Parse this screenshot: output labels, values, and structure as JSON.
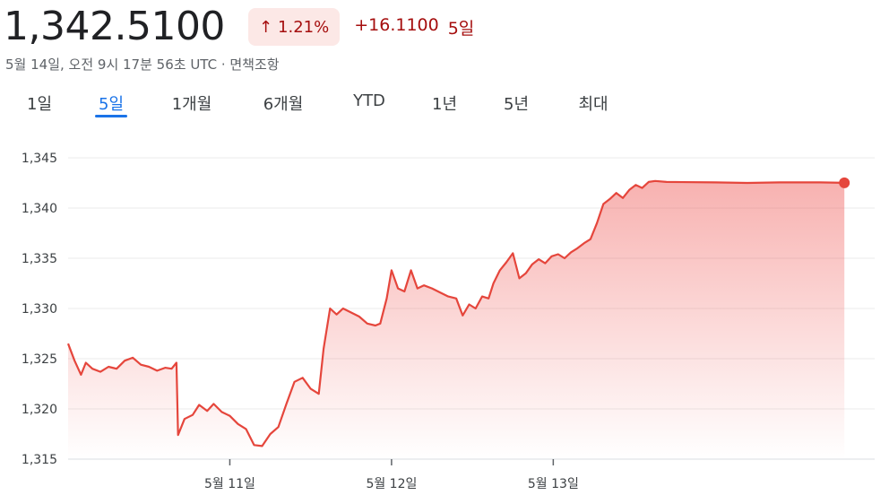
{
  "quote": {
    "price": "1,342.5100",
    "pct_change": "1.21%",
    "abs_change": "+16.1100",
    "period": "5일",
    "timestamp": "5월 14일, 오전 9시 17분 56초 UTC · 면책조항",
    "colors": {
      "negative_text": "#a50e0e",
      "badge_bg": "#fce8e6",
      "line": "#e5463c"
    }
  },
  "tabs": [
    {
      "label": "1일",
      "active": false
    },
    {
      "label": "5일",
      "active": true
    },
    {
      "label": "1개월",
      "active": false
    },
    {
      "label": "6개월",
      "active": false
    },
    {
      "label": "YTD",
      "active": false
    },
    {
      "label": "1년",
      "active": false
    },
    {
      "label": "5년",
      "active": false
    },
    {
      "label": "최대",
      "active": false
    }
  ],
  "chart_data": {
    "type": "area",
    "y_ticks": [
      "1,345",
      "1,340",
      "1,335",
      "1,330",
      "1,325",
      "1,320",
      "1,315"
    ],
    "y_tick_values": [
      1345,
      1340,
      1335,
      1330,
      1325,
      1320,
      1315
    ],
    "ylim": [
      1315,
      1345
    ],
    "x_ticks": [
      "5월 11일",
      "5월 12일",
      "5월 13일"
    ],
    "x_tick_positions": [
      10,
      20,
      30
    ],
    "xlim": [
      0,
      50
    ],
    "grid": true,
    "series": [
      {
        "values": [
          [
            0.0,
            1326.5
          ],
          [
            0.4,
            1324.8
          ],
          [
            0.8,
            1323.4
          ],
          [
            1.1,
            1324.6
          ],
          [
            1.5,
            1324.0
          ],
          [
            2.0,
            1323.7
          ],
          [
            2.5,
            1324.2
          ],
          [
            3.0,
            1324.0
          ],
          [
            3.5,
            1324.8
          ],
          [
            4.0,
            1325.1
          ],
          [
            4.5,
            1324.4
          ],
          [
            5.0,
            1324.2
          ],
          [
            5.5,
            1323.8
          ],
          [
            6.0,
            1324.1
          ],
          [
            6.4,
            1324.0
          ],
          [
            6.7,
            1324.6
          ],
          [
            6.8,
            1317.4
          ],
          [
            7.2,
            1319.0
          ],
          [
            7.7,
            1319.4
          ],
          [
            8.1,
            1320.4
          ],
          [
            8.6,
            1319.8
          ],
          [
            9.0,
            1320.5
          ],
          [
            9.5,
            1319.7
          ],
          [
            10.0,
            1319.3
          ],
          [
            10.5,
            1318.5
          ],
          [
            11.0,
            1318.0
          ],
          [
            11.5,
            1316.4
          ],
          [
            12.0,
            1316.3
          ],
          [
            12.5,
            1317.5
          ],
          [
            13.0,
            1318.2
          ],
          [
            13.5,
            1320.5
          ],
          [
            14.0,
            1322.7
          ],
          [
            14.5,
            1323.1
          ],
          [
            15.0,
            1322.0
          ],
          [
            15.5,
            1321.5
          ],
          [
            15.8,
            1326.0
          ],
          [
            16.2,
            1330.0
          ],
          [
            16.6,
            1329.4
          ],
          [
            17.0,
            1330.0
          ],
          [
            17.5,
            1329.6
          ],
          [
            18.0,
            1329.2
          ],
          [
            18.5,
            1328.5
          ],
          [
            19.0,
            1328.3
          ],
          [
            19.3,
            1328.5
          ],
          [
            19.7,
            1331.0
          ],
          [
            20.0,
            1333.8
          ],
          [
            20.4,
            1332.0
          ],
          [
            20.8,
            1331.7
          ],
          [
            21.2,
            1333.8
          ],
          [
            21.6,
            1332.0
          ],
          [
            22.0,
            1332.3
          ],
          [
            22.5,
            1332.0
          ],
          [
            23.0,
            1331.6
          ],
          [
            23.5,
            1331.2
          ],
          [
            24.0,
            1331.0
          ],
          [
            24.4,
            1329.3
          ],
          [
            24.8,
            1330.4
          ],
          [
            25.2,
            1330.0
          ],
          [
            25.6,
            1331.2
          ],
          [
            26.0,
            1331.0
          ],
          [
            26.3,
            1332.5
          ],
          [
            26.7,
            1333.8
          ],
          [
            27.1,
            1334.6
          ],
          [
            27.5,
            1335.5
          ],
          [
            27.9,
            1333.0
          ],
          [
            28.3,
            1333.5
          ],
          [
            28.7,
            1334.4
          ],
          [
            29.1,
            1334.9
          ],
          [
            29.5,
            1334.5
          ],
          [
            29.9,
            1335.2
          ],
          [
            30.3,
            1335.4
          ],
          [
            30.7,
            1335.0
          ],
          [
            31.1,
            1335.6
          ],
          [
            31.5,
            1336.0
          ],
          [
            31.9,
            1336.5
          ],
          [
            32.3,
            1336.9
          ],
          [
            32.7,
            1338.5
          ],
          [
            33.1,
            1340.4
          ],
          [
            33.5,
            1340.9
          ],
          [
            33.9,
            1341.5
          ],
          [
            34.3,
            1341.0
          ],
          [
            34.7,
            1341.8
          ],
          [
            35.1,
            1342.3
          ],
          [
            35.5,
            1342.0
          ],
          [
            35.9,
            1342.6
          ],
          [
            36.3,
            1342.7
          ],
          [
            37.0,
            1342.6
          ],
          [
            40.0,
            1342.55
          ],
          [
            42.0,
            1342.5
          ],
          [
            44.0,
            1342.55
          ],
          [
            46.5,
            1342.55
          ],
          [
            48.0,
            1342.51
          ]
        ]
      }
    ]
  }
}
